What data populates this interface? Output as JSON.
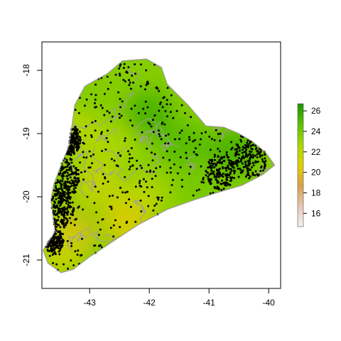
{
  "chart_data": {
    "type": "heatmap",
    "title": "",
    "xlabel": "",
    "ylabel": "",
    "x_axis": {
      "range": [
        -43.8,
        -39.8
      ],
      "ticks": [
        -43,
        -42,
        -41,
        -40
      ],
      "tick_labels": [
        "-43",
        "-42",
        "-41",
        "-40"
      ]
    },
    "y_axis": {
      "range": [
        -21.45,
        -17.55
      ],
      "ticks": [
        -18,
        -19,
        -20,
        -21
      ],
      "tick_labels": [
        "-18",
        "-19",
        "-20",
        "-21"
      ]
    },
    "legend": {
      "placement": "right",
      "range": [
        14.7,
        26.7
      ],
      "ticks": [
        16,
        18,
        20,
        22,
        24,
        26
      ],
      "tick_labels": [
        "16",
        "18",
        "20",
        "22",
        "24",
        "26"
      ],
      "colors": [
        "#f2f2f2",
        "#e6c6b0",
        "#d8a04a",
        "#dfd200",
        "#a6d800",
        "#5cc000",
        "#1a9600"
      ]
    },
    "grid": false,
    "region_outline": [
      [
        -43.35,
        -19.2
      ],
      [
        -43.3,
        -18.9
      ],
      [
        -43.25,
        -18.55
      ],
      [
        -43.08,
        -18.25
      ],
      [
        -42.7,
        -18.05
      ],
      [
        -42.45,
        -17.85
      ],
      [
        -42.05,
        -17.82
      ],
      [
        -41.8,
        -17.95
      ],
      [
        -41.7,
        -18.22
      ],
      [
        -41.35,
        -18.55
      ],
      [
        -41.05,
        -18.88
      ],
      [
        -40.75,
        -18.9
      ],
      [
        -40.5,
        -19.0
      ],
      [
        -40.28,
        -19.12
      ],
      [
        -40.05,
        -19.3
      ],
      [
        -39.9,
        -19.5
      ],
      [
        -40.1,
        -19.65
      ],
      [
        -40.45,
        -19.82
      ],
      [
        -40.85,
        -19.93
      ],
      [
        -41.25,
        -20.05
      ],
      [
        -41.7,
        -20.2
      ],
      [
        -42.2,
        -20.45
      ],
      [
        -42.6,
        -20.7
      ],
      [
        -43.0,
        -20.95
      ],
      [
        -43.28,
        -21.15
      ],
      [
        -43.48,
        -21.2
      ],
      [
        -43.7,
        -21.05
      ],
      [
        -43.78,
        -20.85
      ],
      [
        -43.58,
        -20.55
      ],
      [
        -43.65,
        -20.05
      ],
      [
        -43.6,
        -19.8
      ],
      [
        -43.5,
        -19.55
      ]
    ],
    "value_zones": [
      {
        "lon": -42.0,
        "lat": -18.7,
        "value": 25.5
      },
      {
        "lon": -41.4,
        "lat": -19.2,
        "value": 25.0
      },
      {
        "lon": -40.6,
        "lat": -19.3,
        "value": 25.5
      },
      {
        "lon": -42.6,
        "lat": -19.2,
        "value": 22.5
      },
      {
        "lon": -42.9,
        "lat": -19.8,
        "value": 21.5
      },
      {
        "lon": -42.1,
        "lat": -20.0,
        "value": 22.0
      },
      {
        "lon": -42.4,
        "lat": -20.4,
        "value": 20.5
      },
      {
        "lon": -43.3,
        "lat": -20.6,
        "value": 20.0
      },
      {
        "lon": -43.5,
        "lat": -20.9,
        "value": 21.5
      },
      {
        "lon": -41.1,
        "lat": -19.8,
        "value": 24.0
      },
      {
        "lon": -43.2,
        "lat": -19.0,
        "value": 22.0
      }
    ]
  }
}
